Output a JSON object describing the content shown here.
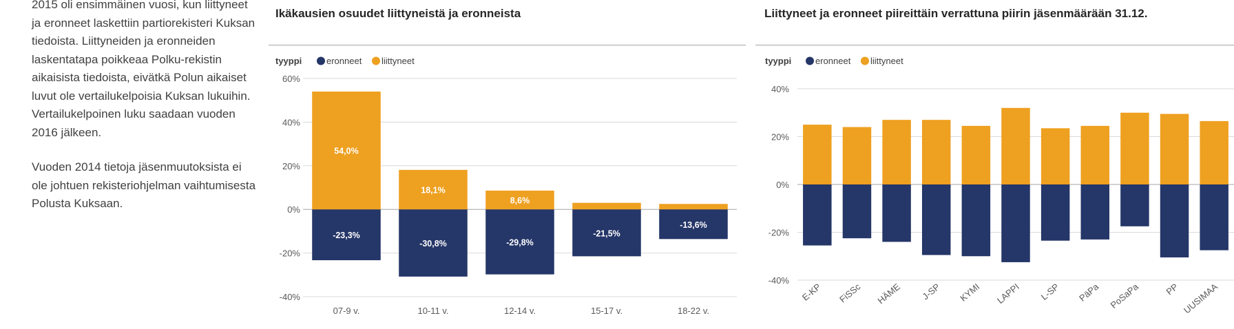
{
  "text_column": {
    "paragraph_1": "2015 oli ensimmäinen vuosi, kun liittyneet ja eronneet laskettiin partiorekisteri Kuksan tiedoista. Liittyneiden ja eronneiden laskentatapa poikkeaa Polku-rekistin aikaisista tiedoista, eivätkä Polun aikaiset luvut ole vertailukelpoisia Kuksan lukuihin. Vertailukelpoinen luku saadaan vuoden 2016 jälkeen.",
    "paragraph_2": "Vuoden 2014 tietoja jäsenmuutoksista ei ole johtuen rekisteriohjelman vaihtumisesta Polusta Kuksaan."
  },
  "colors": {
    "eronneet": "#253668",
    "liittyneet": "#eea020",
    "grid": "#d9d9d9",
    "axis": "#a6a6a6"
  },
  "chart_data": [
    {
      "type": "bar",
      "stacked": true,
      "title": "Ikäkausien osuudet liittyneistä ja eronneista",
      "legend_title": "tyyppi",
      "legend_position": "top-left",
      "categories": [
        "07-9 v.",
        "10-11 v.",
        "12-14 v.",
        "15-17 v.",
        "18-22 v."
      ],
      "series": [
        {
          "name": "eronneet",
          "values": [
            -23.3,
            -30.8,
            -29.8,
            -21.5,
            -13.6
          ],
          "labels": [
            "-23,3%",
            "-30,8%",
            "-29,8%",
            "-21,5%",
            "-13,6%"
          ]
        },
        {
          "name": "liittyneet",
          "values": [
            54.0,
            18.1,
            8.6,
            3.0,
            2.5
          ],
          "labels": [
            "54,0%",
            "18,1%",
            "8,6%",
            "",
            ""
          ]
        }
      ],
      "ylim": [
        -40,
        60
      ],
      "yticks": [
        60,
        40,
        20,
        0,
        -20,
        -40
      ],
      "ytick_labels": [
        "60%",
        "40%",
        "20%",
        "0%",
        "-20%",
        "-40%"
      ],
      "grid": true
    },
    {
      "type": "bar",
      "stacked": true,
      "title": "Liittyneet ja eronneet piireittäin verrattuna piirin jäsenmäärään 31.12.",
      "legend_title": "tyyppi",
      "legend_position": "top-left",
      "categories": [
        "E-KP",
        "FiSSc",
        "HÄME",
        "J-SP",
        "KYMI",
        "LAPPI",
        "L-SP",
        "PäPa",
        "PoSaPa",
        "PP",
        "UUSIMAA"
      ],
      "series": [
        {
          "name": "eronneet",
          "values": [
            -25.5,
            -22.5,
            -24.0,
            -29.5,
            -30.0,
            -32.5,
            -23.5,
            -23.0,
            -17.5,
            -30.5,
            -27.5
          ]
        },
        {
          "name": "liittyneet",
          "values": [
            25.0,
            24.0,
            27.0,
            27.0,
            24.5,
            32.0,
            23.5,
            24.5,
            30.0,
            29.5,
            26.5
          ]
        }
      ],
      "ylim": [
        -40,
        40
      ],
      "yticks": [
        40,
        20,
        0,
        -20,
        -40
      ],
      "ytick_labels": [
        "40%",
        "20%",
        "0%",
        "-20%",
        "-40%"
      ],
      "grid": true
    }
  ]
}
